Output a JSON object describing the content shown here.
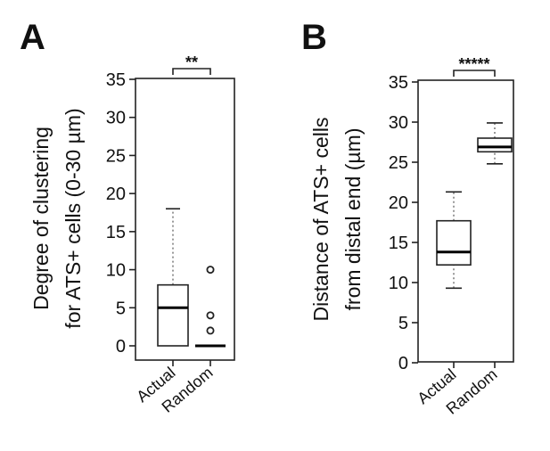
{
  "chart_data": [
    {
      "type": "box",
      "panel_label": "A",
      "ylabel_lines": [
        "Degree of clustering",
        "for ATS+ cells (0-30 µm)"
      ],
      "ylim": [
        0,
        35
      ],
      "yticks": [
        0,
        5,
        10,
        15,
        20,
        25,
        30,
        35
      ],
      "categories": [
        "Actual",
        "Random"
      ],
      "boxes": [
        {
          "name": "Actual",
          "whisker_low": 0,
          "q1": 0,
          "median": 5,
          "q3": 8,
          "whisker_high": 18,
          "outliers": []
        },
        {
          "name": "Random",
          "whisker_low": 0,
          "q1": 0,
          "median": 0,
          "q3": 0,
          "whisker_high": 0,
          "outliers": [
            2,
            4,
            10
          ]
        }
      ],
      "significance": "**",
      "grid": false
    },
    {
      "type": "box",
      "panel_label": "B",
      "ylabel_lines": [
        "Distance of ATS+ cells",
        "from distal end (µm)"
      ],
      "ylim": [
        0,
        35
      ],
      "yticks": [
        0,
        5,
        10,
        15,
        20,
        25,
        30,
        35
      ],
      "categories": [
        "Actual",
        "Random"
      ],
      "boxes": [
        {
          "name": "Actual",
          "whisker_low": 9.3,
          "q1": 12.2,
          "median": 13.8,
          "q3": 17.7,
          "whisker_high": 21.3,
          "outliers": []
        },
        {
          "name": "Random",
          "whisker_low": 24.8,
          "q1": 26.3,
          "median": 26.9,
          "q3": 28.0,
          "whisker_high": 29.9,
          "outliers": []
        }
      ],
      "significance": "*****",
      "grid": false
    }
  ]
}
